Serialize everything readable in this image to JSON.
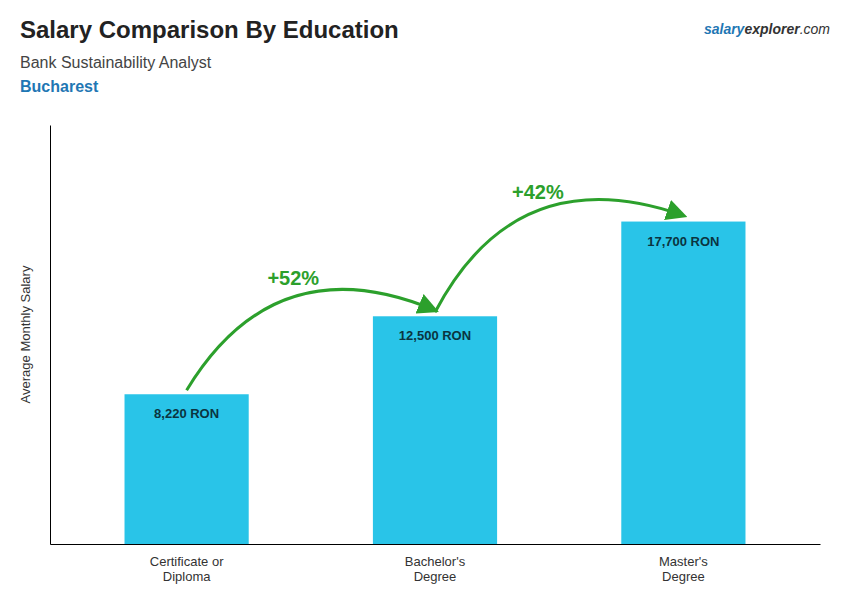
{
  "chart_data": {
    "type": "bar",
    "title": "Salary Comparison By Education",
    "subtitle": [
      "Bank Sustainability Analyst",
      "Bucharest"
    ],
    "source": [
      "salary",
      "explorer",
      ".com"
    ],
    "ylabel": "Average Monthly Salary",
    "categories": [
      "Certificate or\nDiploma",
      "Bachelor's\nDegree",
      "Master's\nDegree"
    ],
    "values": [
      8220,
      12500,
      17700
    ],
    "value_labels": [
      "8,220 RON",
      "12,500 RON",
      "17,700 RON"
    ],
    "data_labels": true,
    "annotations": [
      "+52%",
      "+42%"
    ],
    "color": "#29c4e8",
    "ylim": [
      0,
      23000
    ],
    "tick_labels": "x"
  }
}
